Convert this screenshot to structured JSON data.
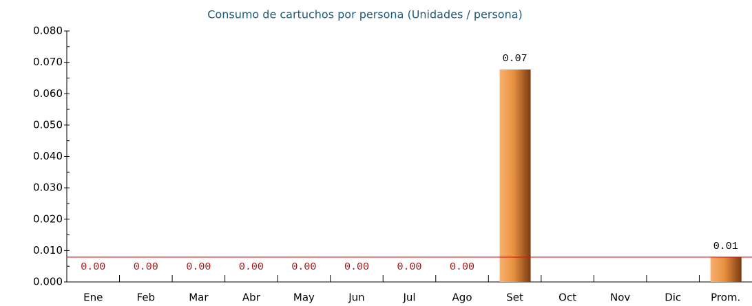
{
  "chart_data": {
    "type": "bar",
    "title": "Consumo de cartuchos por persona (Unidades / persona)",
    "categories": [
      "Ene",
      "Feb",
      "Mar",
      "Abr",
      "May",
      "Jun",
      "Jul",
      "Ago",
      "Set",
      "Oct",
      "Nov",
      "Dic",
      "Prom."
    ],
    "values": [
      0,
      0,
      0,
      0,
      0,
      0,
      0,
      0,
      0.0677,
      null,
      null,
      null,
      0.0079
    ],
    "value_labels": [
      "0.00",
      "0.00",
      "0.00",
      "0.00",
      "0.00",
      "0.00",
      "0.00",
      "0.00",
      "0.07",
      null,
      null,
      null,
      "0.01"
    ],
    "color": "#e8913f",
    "zero_label_color": "#a01010",
    "ylim": [
      0,
      0.08
    ],
    "yticks": [
      {
        "value": 0,
        "label": "0.000"
      },
      {
        "value": 0.01,
        "label": "0.010"
      },
      {
        "value": 0.02,
        "label": "0.020"
      },
      {
        "value": 0.03,
        "label": "0.030"
      },
      {
        "value": 0.04,
        "label": "0.040"
      },
      {
        "value": 0.05,
        "label": "0.050"
      },
      {
        "value": 0.06,
        "label": "0.060"
      },
      {
        "value": 0.07,
        "label": "0.070"
      },
      {
        "value": 0.08,
        "label": "0.080"
      }
    ],
    "average_line": {
      "value": 0.0079,
      "color": "#e01010"
    }
  }
}
